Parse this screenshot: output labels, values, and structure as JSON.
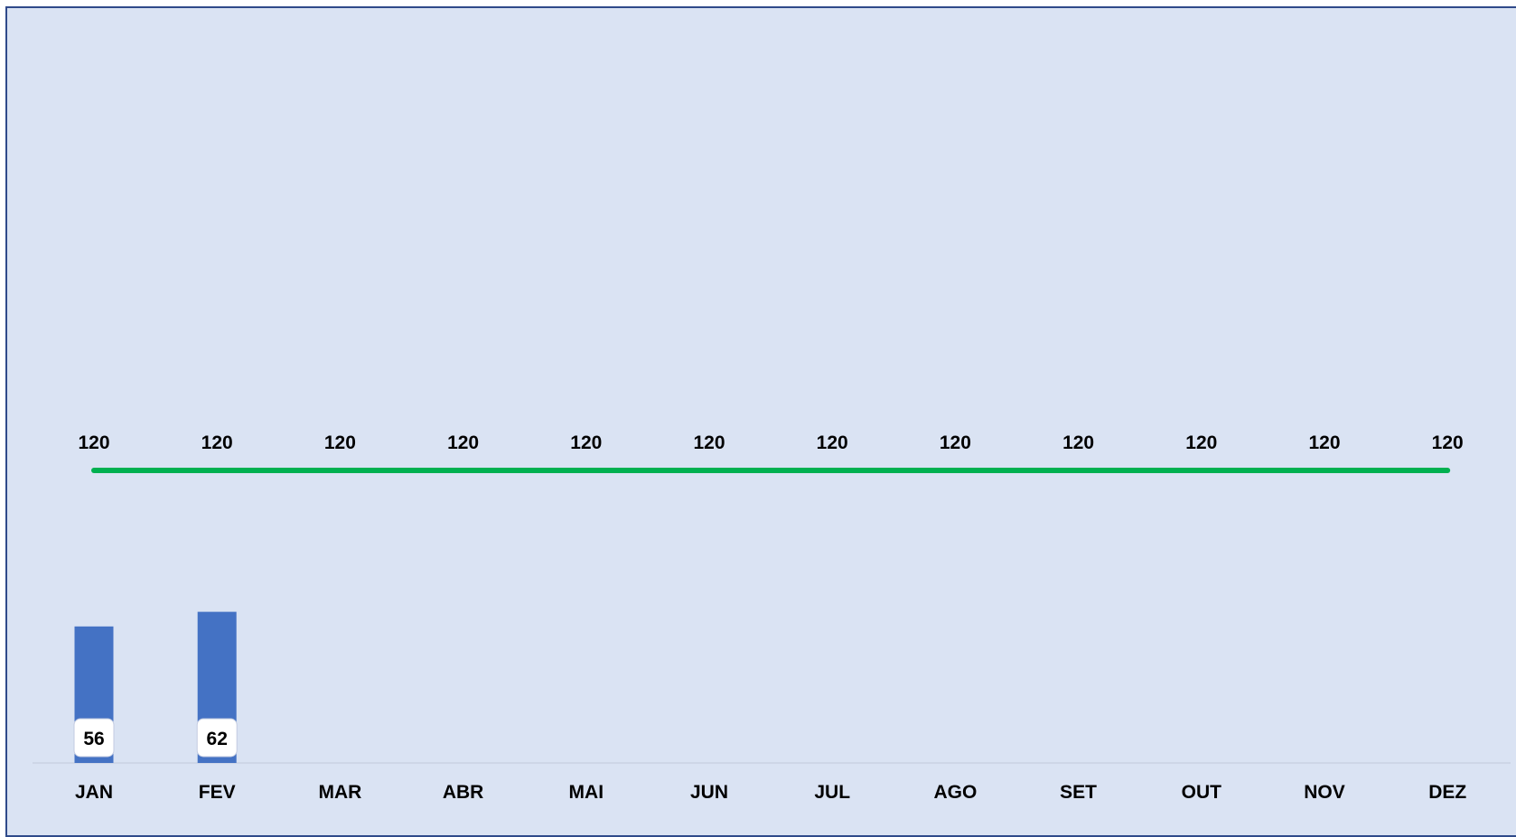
{
  "chart_data": {
    "type": "bar",
    "categories": [
      "JAN",
      "FEV",
      "MAR",
      "ABR",
      "MAI",
      "JUN",
      "JUL",
      "AGO",
      "SET",
      "OUT",
      "NOV",
      "DEZ"
    ],
    "series": [
      {
        "type": "bar",
        "values": [
          56,
          62,
          null,
          null,
          null,
          null,
          null,
          null,
          null,
          null,
          null,
          null
        ],
        "color": "#4472c4"
      },
      {
        "type": "line",
        "values": [
          120,
          120,
          120,
          120,
          120,
          120,
          120,
          120,
          120,
          120,
          120,
          120
        ],
        "color": "#00b050"
      }
    ],
    "title": "",
    "xlabel": "",
    "ylabel": "",
    "ylim": [
      0,
      134
    ],
    "grid": false,
    "legend": "none",
    "data_labels": true,
    "background": "#dae3f3"
  }
}
